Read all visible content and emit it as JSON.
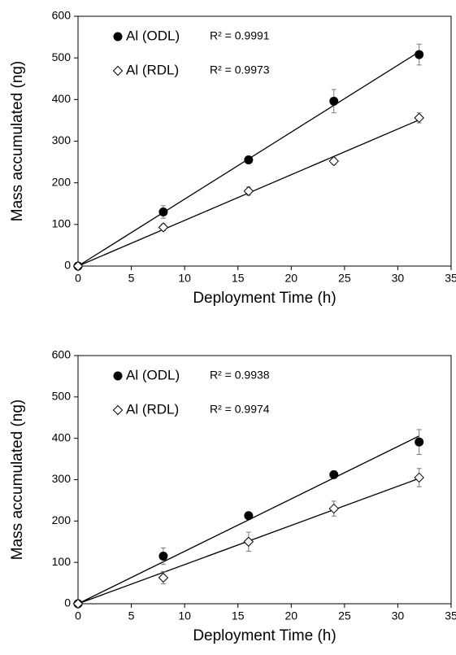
{
  "chart_data": [
    {
      "type": "scatter",
      "xlabel": "Deployment Time (h)",
      "ylabel": "Mass accumulated (ng)",
      "x": [
        0,
        8,
        16,
        24,
        32
      ],
      "xlim": [
        0,
        35
      ],
      "xticks": [
        0,
        5,
        10,
        15,
        20,
        25,
        30,
        35
      ],
      "ylim": [
        0,
        600
      ],
      "yticks": [
        0,
        100,
        200,
        300,
        400,
        500,
        600
      ],
      "series": [
        {
          "name": "Al (ODL)",
          "annotation": "R² = 0.9991",
          "color": "#000000",
          "marker": "circle",
          "values": [
            0,
            130,
            255,
            396,
            508
          ],
          "errors": [
            0,
            15,
            5,
            28,
            25
          ]
        },
        {
          "name": "Al (RDL)",
          "annotation": "R² = 0.9973",
          "color": "#000000",
          "marker": "diamond",
          "values": [
            0,
            93,
            180,
            252,
            356
          ],
          "errors": [
            0,
            8,
            10,
            8,
            12
          ]
        }
      ]
    },
    {
      "type": "scatter",
      "xlabel": "Deployment Time (h)",
      "ylabel": "Mass accumulated (ng)",
      "x": [
        0,
        8,
        16,
        24,
        32
      ],
      "xlim": [
        0,
        35
      ],
      "xticks": [
        0,
        5,
        10,
        15,
        20,
        25,
        30,
        35
      ],
      "ylim": [
        0,
        600
      ],
      "yticks": [
        0,
        100,
        200,
        300,
        400,
        500,
        600
      ],
      "series": [
        {
          "name": "Al (ODL)",
          "annotation": "R² = 0.9938",
          "color": "#000000",
          "marker": "circle",
          "values": [
            0,
            115,
            213,
            312,
            391
          ],
          "errors": [
            0,
            20,
            8,
            5,
            30
          ]
        },
        {
          "name": "Al (RDL)",
          "annotation": "R² = 0.9974",
          "color": "#000000",
          "marker": "diamond",
          "values": [
            0,
            63,
            150,
            230,
            305
          ],
          "errors": [
            0,
            15,
            23,
            18,
            22
          ]
        }
      ]
    }
  ]
}
